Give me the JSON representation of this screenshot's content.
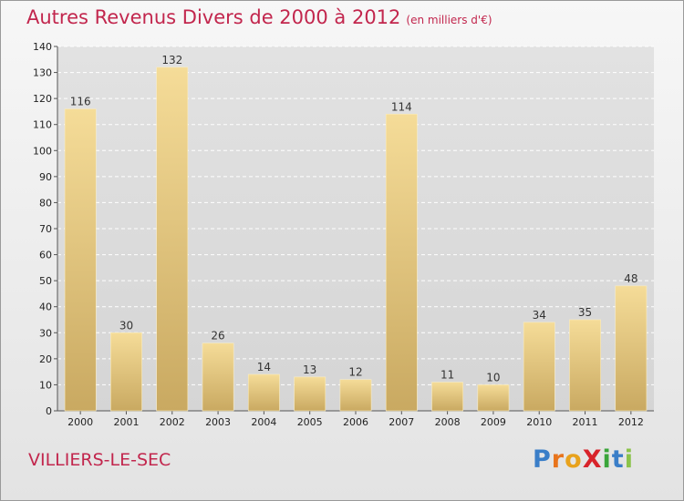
{
  "header": {
    "title": "Autres Revenus Divers de 2000 à 2012",
    "subtitle": "(en milliers d'€)"
  },
  "footer": {
    "commune": "VILLIERS-LE-SEC",
    "logo_text": "ProXiti",
    "logo_letters": [
      {
        "ch": "P",
        "color": "#3a7ec8"
      },
      {
        "ch": "r",
        "color": "#e8741c"
      },
      {
        "ch": "o",
        "color": "#e8a21c"
      },
      {
        "ch": "X",
        "color": "#d8232a"
      },
      {
        "ch": "i",
        "color": "#3aa53a"
      },
      {
        "ch": "t",
        "color": "#3a7ec8"
      },
      {
        "ch": "i",
        "color": "#8bc34a"
      }
    ]
  },
  "colors": {
    "bar_light": "#f5dc98",
    "bar_dark": "#c9a961",
    "title": "#c2264d",
    "grid": "#ffffff"
  },
  "chart_data": {
    "type": "bar",
    "title": "Autres Revenus Divers de 2000 à 2012",
    "subtitle": "(en milliers d'€)",
    "categories": [
      "2000",
      "2001",
      "2002",
      "2003",
      "2004",
      "2005",
      "2006",
      "2007",
      "2008",
      "2009",
      "2010",
      "2011",
      "2012"
    ],
    "values": [
      116,
      30,
      132,
      26,
      14,
      13,
      12,
      114,
      11,
      10,
      34,
      35,
      48
    ],
    "ylim": [
      0,
      140
    ],
    "yticks": [
      0,
      10,
      20,
      30,
      40,
      50,
      60,
      70,
      80,
      90,
      100,
      110,
      120,
      130,
      140
    ],
    "grid": true,
    "xlabel": "",
    "ylabel": ""
  }
}
